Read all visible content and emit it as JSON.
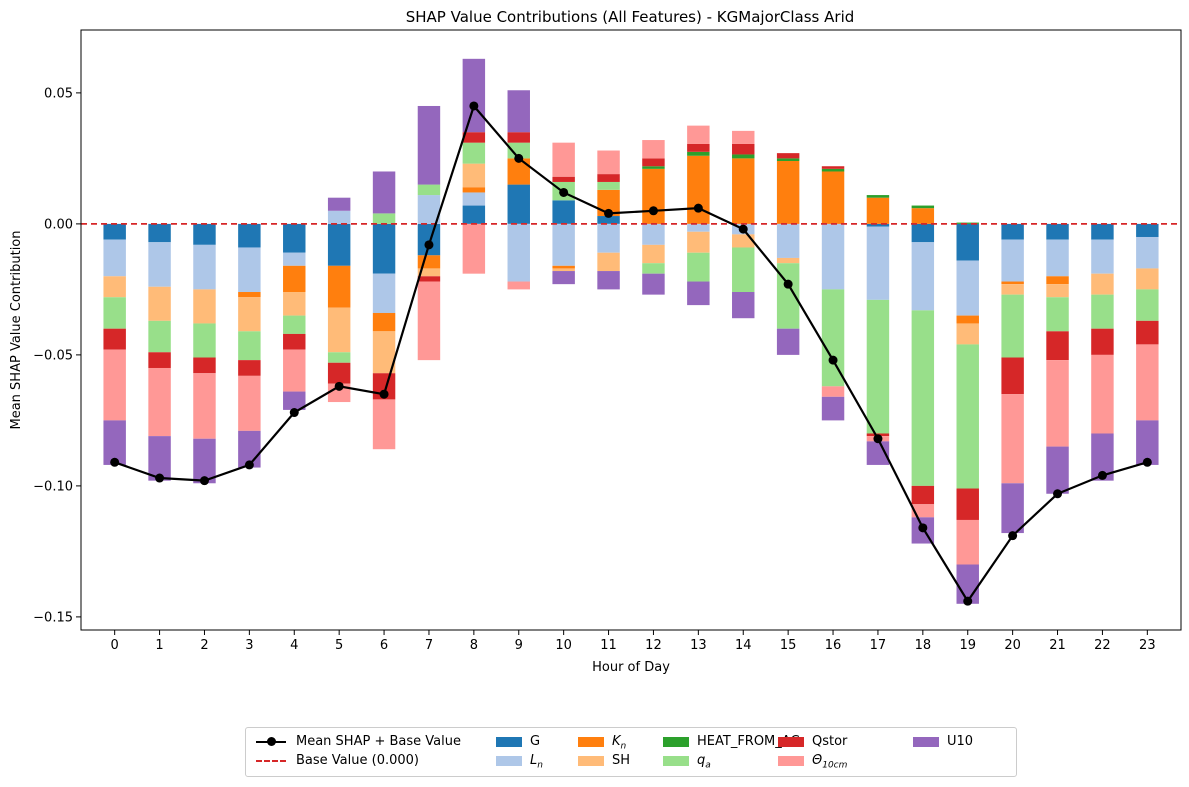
{
  "chart_data": {
    "type": "bar",
    "stacked": true,
    "title": "SHAP Value Contributions (All Features) - KGMajorClass Arid",
    "xlabel": "Hour of Day",
    "ylabel": "Mean SHAP Value Contribution",
    "ylim": [
      -0.155,
      0.074
    ],
    "yticks": [
      "0.05",
      "0.00",
      "−0.05",
      "−0.10",
      "−0.15"
    ],
    "ytick_values": [
      0.05,
      0.0,
      -0.05,
      -0.1,
      -0.15
    ],
    "categories": [
      "0",
      "1",
      "2",
      "3",
      "4",
      "5",
      "6",
      "7",
      "8",
      "9",
      "10",
      "11",
      "12",
      "13",
      "14",
      "15",
      "16",
      "17",
      "18",
      "19",
      "20",
      "21",
      "22",
      "23"
    ],
    "grid": false,
    "legend_position": "bottom-center",
    "series": [
      {
        "name": "G",
        "color": "#1f77b4",
        "values": [
          -0.006,
          -0.007,
          -0.008,
          -0.009,
          -0.011,
          -0.016,
          -0.019,
          -0.012,
          0.007,
          0.015,
          0.009,
          0.003,
          0.0,
          0.0,
          0.0,
          0.0,
          0.0,
          -0.001,
          -0.007,
          -0.014,
          -0.006,
          -0.006,
          -0.006,
          -0.005
        ]
      },
      {
        "name": "L_n",
        "color": "#aec7e8",
        "values": [
          -0.014,
          -0.017,
          -0.017,
          -0.017,
          -0.005,
          0.005,
          -0.015,
          0.011,
          0.005,
          -0.022,
          -0.016,
          -0.011,
          -0.008,
          -0.003,
          -0.004,
          -0.013,
          -0.025,
          -0.028,
          -0.026,
          -0.021,
          -0.016,
          -0.014,
          -0.013,
          -0.012
        ]
      },
      {
        "name": "K_n",
        "color": "#ff7f0e",
        "values": [
          0.0,
          0.0,
          0.0,
          -0.002,
          -0.01,
          -0.016,
          -0.007,
          -0.005,
          0.002,
          0.01,
          -0.001,
          0.01,
          0.021,
          0.026,
          0.025,
          0.024,
          0.02,
          0.01,
          0.006,
          -0.003,
          -0.001,
          -0.003,
          0.0,
          0.0
        ]
      },
      {
        "name": "SH",
        "color": "#ffbb78",
        "values": [
          -0.008,
          -0.013,
          -0.013,
          -0.013,
          -0.009,
          -0.017,
          -0.016,
          -0.003,
          0.009,
          0.0,
          -0.001,
          -0.007,
          -0.007,
          -0.008,
          -0.005,
          -0.002,
          0.0,
          0.0,
          0.0,
          -0.008,
          -0.004,
          -0.005,
          -0.008,
          -0.008
        ]
      },
      {
        "name": "HEAT_FROM_AC",
        "color": "#2ca02c",
        "values": [
          0.0,
          0.0,
          0.0,
          0.0,
          0.0,
          0.0,
          0.0,
          0.0,
          0.0,
          0.0,
          0.0,
          0.0,
          0.001,
          0.0015,
          0.0015,
          0.001,
          0.001,
          0.001,
          0.001,
          0.0005,
          0.0,
          0.0,
          0.0,
          0.0
        ]
      },
      {
        "name": "q_a",
        "color": "#98df8a",
        "values": [
          -0.012,
          -0.012,
          -0.013,
          -0.011,
          -0.007,
          -0.004,
          0.004,
          0.004,
          0.008,
          0.006,
          0.007,
          0.003,
          -0.004,
          -0.011,
          -0.017,
          -0.025,
          -0.037,
          -0.051,
          -0.067,
          -0.055,
          -0.024,
          -0.013,
          -0.013,
          -0.012
        ]
      },
      {
        "name": "Qstor",
        "color": "#d62728",
        "values": [
          -0.008,
          -0.006,
          -0.006,
          -0.006,
          -0.006,
          -0.008,
          -0.01,
          -0.002,
          0.004,
          0.004,
          0.002,
          0.003,
          0.003,
          0.003,
          0.004,
          0.002,
          0.001,
          -0.001,
          -0.007,
          -0.012,
          -0.014,
          -0.011,
          -0.01,
          -0.009
        ]
      },
      {
        "name": "Θ_10cm",
        "color": "#ff9896",
        "values": [
          -0.027,
          -0.026,
          -0.025,
          -0.021,
          -0.016,
          -0.007,
          -0.019,
          -0.03,
          -0.019,
          -0.003,
          0.013,
          0.009,
          0.007,
          0.007,
          0.005,
          0.0,
          -0.004,
          -0.002,
          -0.005,
          -0.017,
          -0.034,
          -0.033,
          -0.03,
          -0.029
        ]
      },
      {
        "name": "U10",
        "color": "#9467bd",
        "values": [
          -0.017,
          -0.017,
          -0.017,
          -0.014,
          -0.007,
          0.005,
          0.016,
          0.03,
          0.028,
          0.016,
          -0.005,
          -0.007,
          -0.008,
          -0.009,
          -0.01,
          -0.01,
          -0.009,
          -0.009,
          -0.01,
          -0.015,
          -0.019,
          -0.018,
          -0.018,
          -0.017
        ]
      }
    ],
    "lines": [
      {
        "name": "Mean SHAP + Base Value",
        "color": "#000000",
        "style": "solid-marker",
        "values": [
          -0.091,
          -0.097,
          -0.098,
          -0.092,
          -0.072,
          -0.062,
          -0.065,
          -0.008,
          0.045,
          0.025,
          0.012,
          0.004,
          0.005,
          0.006,
          -0.002,
          -0.023,
          -0.052,
          -0.082,
          -0.116,
          -0.144,
          -0.119,
          -0.103,
          -0.096,
          -0.091
        ]
      },
      {
        "name": "Base Value (0.000)",
        "color": "#d62728",
        "style": "dashed",
        "value": 0.0
      }
    ]
  },
  "legend": {
    "items": [
      {
        "label": "Mean SHAP + Base Value",
        "kind": "line-marker",
        "color": "#000000"
      },
      {
        "label": "Base Value (0.000)",
        "kind": "dashed",
        "color": "#d62728"
      },
      {
        "label": "G",
        "kind": "patch",
        "color": "#1f77b4"
      },
      {
        "label": "L",
        "sub": "n",
        "kind": "patch",
        "color": "#aec7e8"
      },
      {
        "label": "K",
        "sub": "n",
        "kind": "patch",
        "color": "#ff7f0e"
      },
      {
        "label": "SH",
        "kind": "patch",
        "color": "#ffbb78"
      },
      {
        "label": "HEAT_FROM_AC",
        "kind": "patch",
        "color": "#2ca02c"
      },
      {
        "label": "q",
        "sub": "a",
        "kind": "patch",
        "color": "#98df8a"
      },
      {
        "label": "Qstor",
        "kind": "patch",
        "color": "#d62728"
      },
      {
        "label": "Θ",
        "sub": "10cm",
        "kind": "patch",
        "color": "#ff9896"
      },
      {
        "label": "U10",
        "kind": "patch",
        "color": "#9467bd"
      }
    ]
  }
}
